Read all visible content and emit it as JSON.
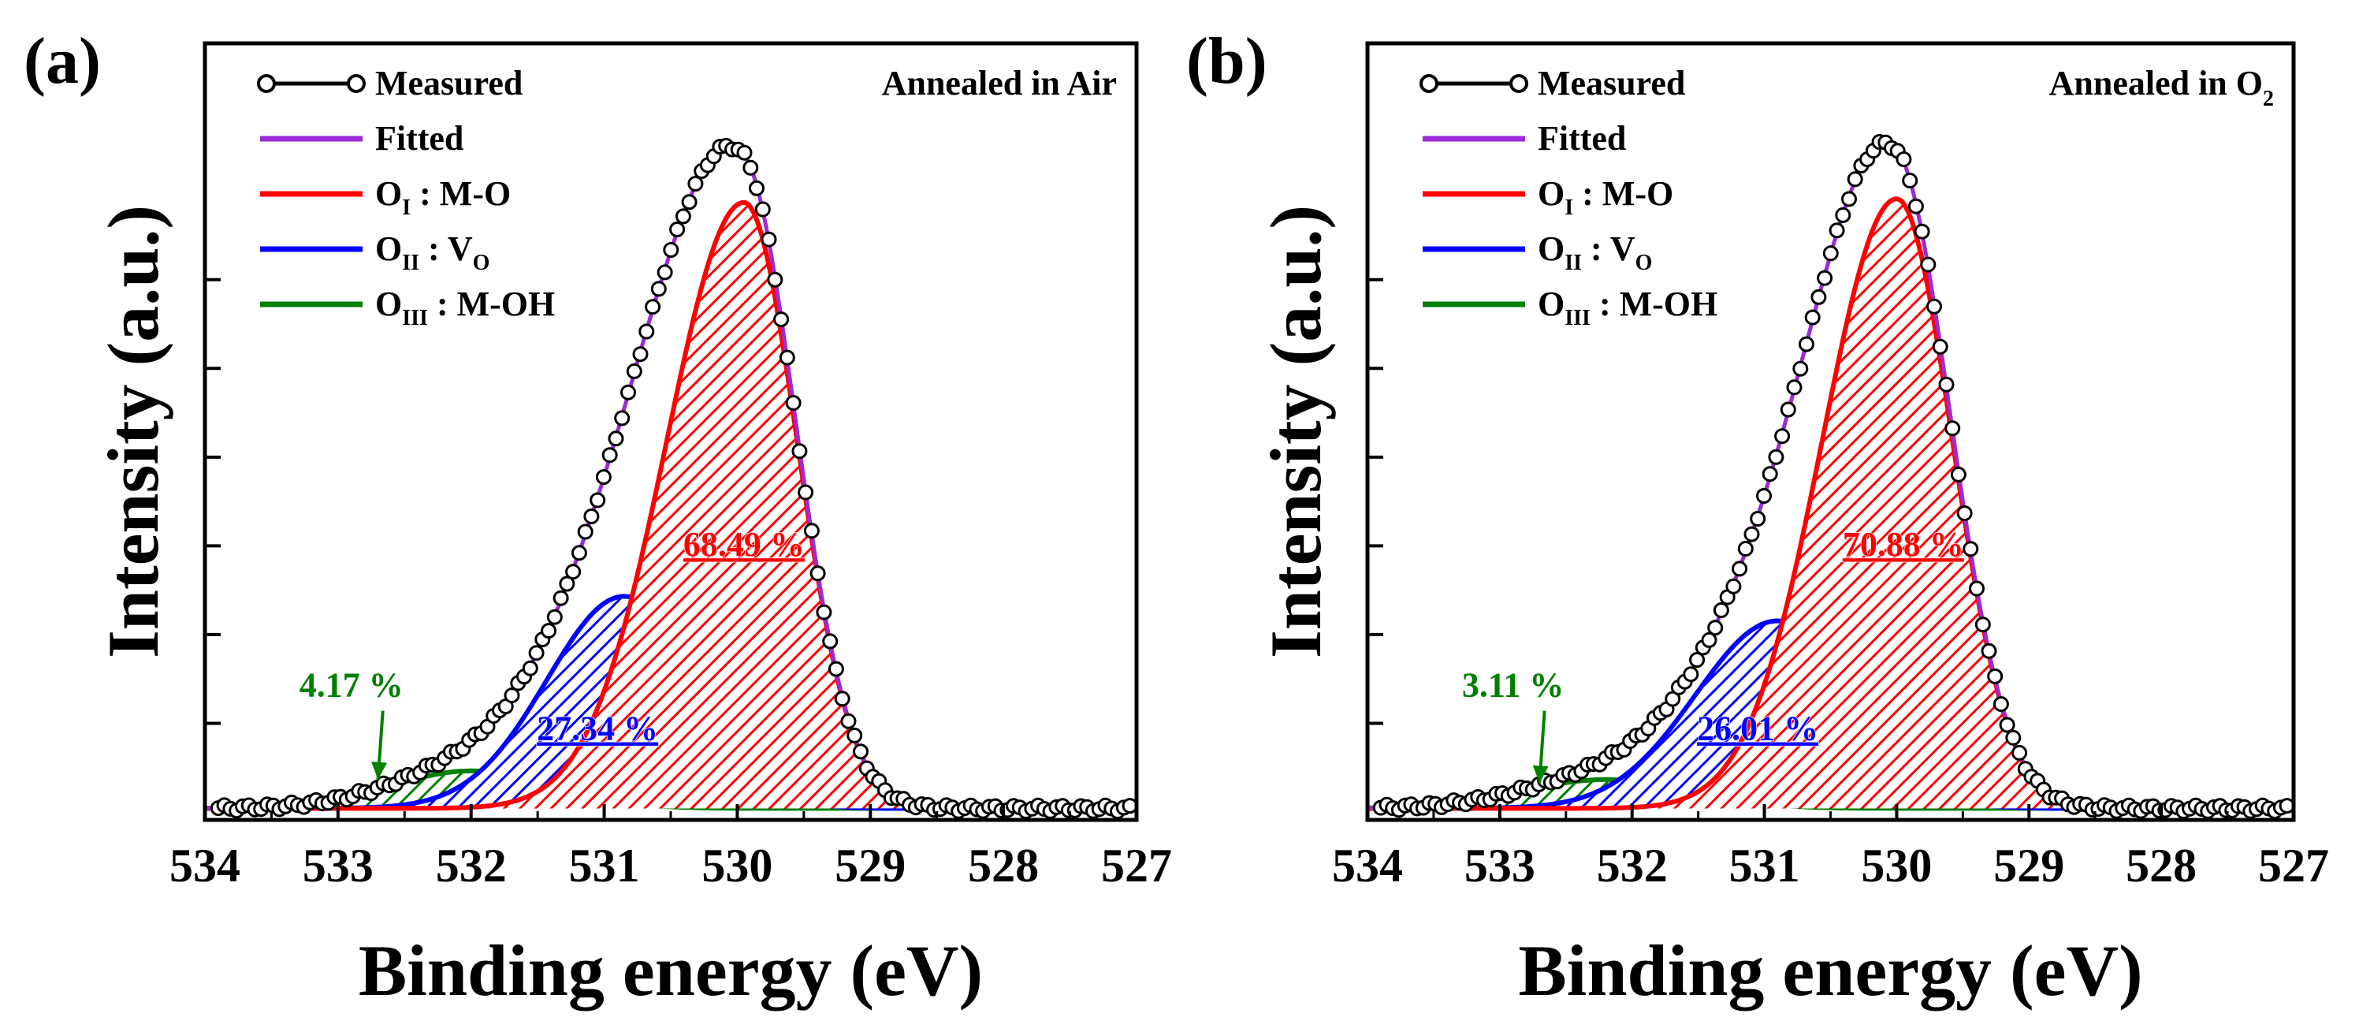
{
  "colors": {
    "measured": "#000000",
    "fitted": "#9a2bd6",
    "o1": "#ff0000",
    "o2": "#0000ff",
    "o3": "#008000"
  },
  "y_axis_title": "Intensity (a.u.)",
  "chart_data": [
    {
      "type": "line",
      "panel_label": "(a)",
      "title": "Annealed in Air",
      "title_main": "Annealed in Air",
      "title_sub": "",
      "xlabel": "Binding energy (eV)",
      "ylabel": "Intensity (a.u.)",
      "xlim": [
        534,
        527
      ],
      "x_reversed": true,
      "ylim": [
        0,
        1.0
      ],
      "x_ticks": [
        534,
        533,
        532,
        531,
        530,
        529,
        528,
        527
      ],
      "x_tick_labels": [
        "534",
        "533",
        "532",
        "531",
        "530",
        "529",
        "528",
        "527"
      ],
      "y_ticks_hidden_labels": [
        0.15,
        0.3,
        0.45,
        0.6,
        0.75,
        0.9
      ],
      "legend": [
        {
          "key": "measured",
          "main": "Measured",
          "sub": "",
          "rest": ""
        },
        {
          "key": "fitted",
          "main": "Fitted",
          "sub": "",
          "rest": ""
        },
        {
          "key": "o1",
          "main": "O",
          "sub": "I",
          "rest": " : M-O"
        },
        {
          "key": "o2",
          "main": "O",
          "sub": "II",
          "rest": " : V",
          "sub2": "O"
        },
        {
          "key": "o3",
          "main": "O",
          "sub": "III",
          "rest": " : M-OH"
        }
      ],
      "components": [
        {
          "name": "O_I : M-O",
          "key": "o1",
          "center": 529.95,
          "amplitude": 0.84,
          "sigma_low_be": 0.4,
          "sigma_high_be": 0.58,
          "area_percent": "68.49 %"
        },
        {
          "name": "O_II : V_O",
          "key": "o2",
          "center": 530.85,
          "amplitude": 0.294,
          "sigma_low_be": 0.52,
          "sigma_high_be": 0.58,
          "area_percent": "27.34 %"
        },
        {
          "name": "O_III : M-OH",
          "key": "o3",
          "center": 532.0,
          "amplitude": 0.052,
          "sigma_low_be": 0.6,
          "sigma_high_be": 0.6,
          "area_percent": "4.17 %"
        }
      ],
      "baseline": 0.005,
      "measured_x_range": [
        533.9,
        527.05
      ],
      "measured_point_count": 150,
      "percent_labels": [
        {
          "key": "o1",
          "text": "68.49 %",
          "x": 529.95,
          "y": 0.355
        },
        {
          "key": "o2",
          "text": "27.34 %",
          "x": 531.05,
          "y": 0.1
        },
        {
          "key": "o3",
          "text": "4.17 %",
          "x": 532.9,
          "y": 0.16,
          "arrow_to": [
            532.7,
            0.045
          ]
        }
      ]
    },
    {
      "type": "line",
      "panel_label": "(b)",
      "title": "Annealed in O2",
      "title_main": "Annealed in O",
      "title_sub": "2",
      "xlabel": "Binding energy (eV)",
      "ylabel": "Intensity (a.u.)",
      "xlim": [
        534,
        527
      ],
      "x_reversed": true,
      "ylim": [
        0,
        1.0
      ],
      "x_ticks": [
        534,
        533,
        532,
        531,
        530,
        529,
        528,
        527
      ],
      "x_tick_labels": [
        "534",
        "533",
        "532",
        "531",
        "530",
        "529",
        "528",
        "527"
      ],
      "y_ticks_hidden_labels": [
        0.15,
        0.3,
        0.45,
        0.6,
        0.75,
        0.9
      ],
      "legend": [
        {
          "key": "measured",
          "main": "Measured",
          "sub": "",
          "rest": ""
        },
        {
          "key": "fitted",
          "main": "Fitted",
          "sub": "",
          "rest": ""
        },
        {
          "key": "o1",
          "main": "O",
          "sub": "I",
          "rest": " : M-O"
        },
        {
          "key": "o2",
          "main": "O",
          "sub": "II",
          "rest": " : V",
          "sub2": "O"
        },
        {
          "key": "o3",
          "main": "O",
          "sub": "III",
          "rest": " : M-OH"
        }
      ],
      "components": [
        {
          "name": "O_I : M-O",
          "key": "o1",
          "center": 530.0,
          "amplitude": 0.845,
          "sigma_low_be": 0.42,
          "sigma_high_be": 0.56,
          "area_percent": "70.88 %"
        },
        {
          "name": "O_II : V_O",
          "key": "o2",
          "center": 530.9,
          "amplitude": 0.26,
          "sigma_low_be": 0.55,
          "sigma_high_be": 0.62,
          "area_percent": "26.01 %"
        },
        {
          "name": "O_III : M-OH",
          "key": "o3",
          "center": 532.2,
          "amplitude": 0.04,
          "sigma_low_be": 0.62,
          "sigma_high_be": 0.62,
          "area_percent": "3.11 %"
        }
      ],
      "baseline": 0.005,
      "measured_x_range": [
        533.9,
        527.05
      ],
      "measured_point_count": 150,
      "percent_labels": [
        {
          "key": "o1",
          "text": "70.88 %",
          "x": 529.95,
          "y": 0.355
        },
        {
          "key": "o2",
          "text": "26.01 %",
          "x": 531.05,
          "y": 0.1
        },
        {
          "key": "o3",
          "text": "3.11 %",
          "x": 532.9,
          "y": 0.16,
          "arrow_to": [
            532.7,
            0.04
          ]
        }
      ]
    }
  ]
}
